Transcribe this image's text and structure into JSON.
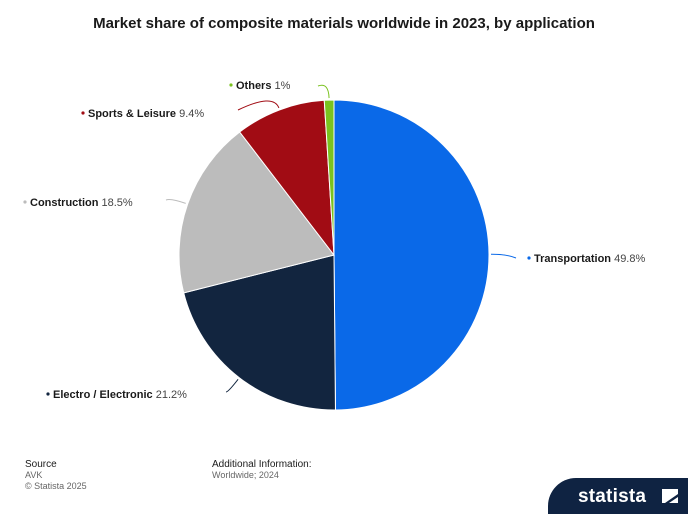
{
  "chart_data": {
    "type": "pie",
    "title": "Market share of composite materials worldwide in 2023, by application",
    "unit": "%",
    "slices": [
      {
        "label": "Transportation",
        "value": 49.8,
        "display": "49.8%",
        "color": "#0a69e8"
      },
      {
        "label": "Electro / Electronic",
        "value": 21.2,
        "display": "21.2%",
        "color": "#12253f"
      },
      {
        "label": "Construction",
        "value": 18.5,
        "display": "18.5%",
        "color": "#bcbcbc"
      },
      {
        "label": "Sports & Leisure",
        "value": 9.4,
        "display": "9.4%",
        "color": "#a10c14"
      },
      {
        "label": "Others",
        "value": 1,
        "display": "1%",
        "color": "#7ac21f"
      }
    ],
    "start_direction": "12 o'clock",
    "direction": "clockwise"
  },
  "footer": {
    "source_heading": "Source",
    "source_value": "AVK",
    "copyright": "© Statista 2025",
    "additional_heading": "Additional Information:",
    "additional_value": "Worldwide; 2024"
  },
  "brand": {
    "name": "statista",
    "bar_color": "#0f2342"
  }
}
